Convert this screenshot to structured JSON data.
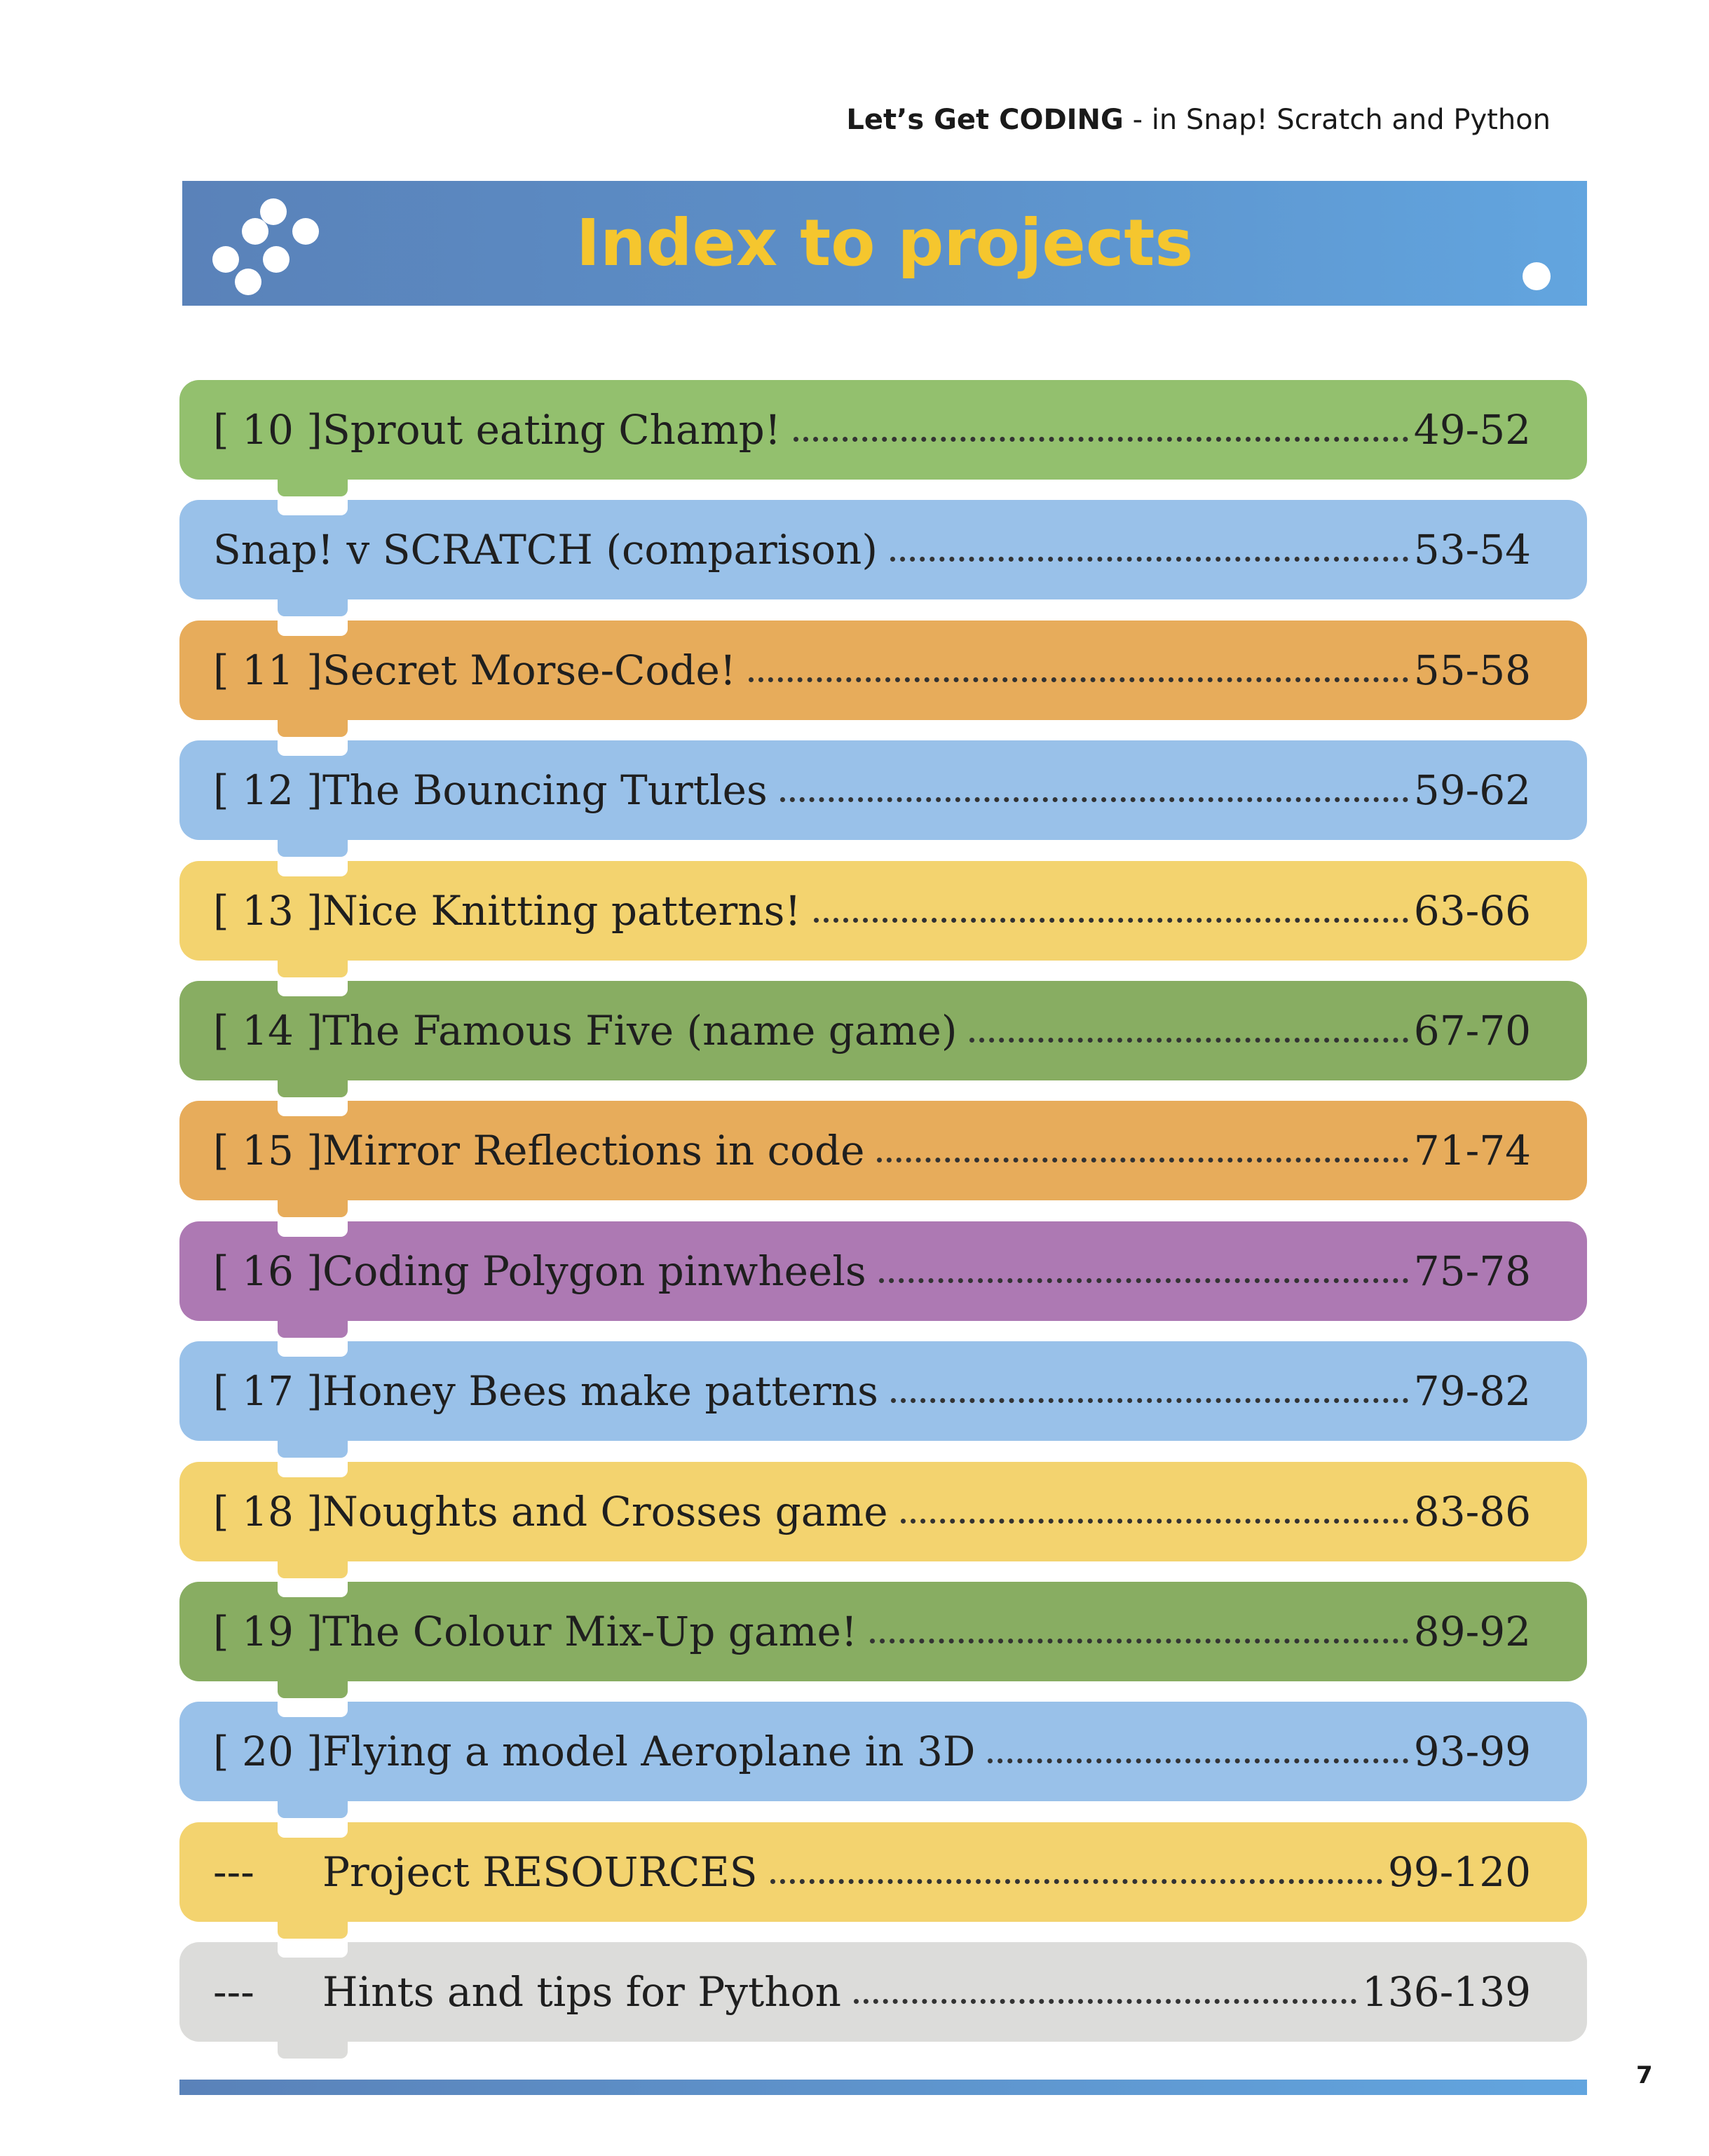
{
  "header": {
    "running_head_bold": "Let’s Get CODING",
    "running_head_rest": " - in Snap! Scratch and Python"
  },
  "banner": {
    "title": "Index to projects",
    "background_color": "#5c8fc8",
    "title_color": "#f5c62e"
  },
  "toc": [
    {
      "number": "[ 10 ]",
      "title": "Sprout eating Champ!",
      "pages": "49-52",
      "color": "#93c06e"
    },
    {
      "number": "",
      "title": "Snap! v SCRATCH (comparison)",
      "pages": "53-54",
      "color": "#99c1e9"
    },
    {
      "number": "[ 11 ]",
      "title": "Secret Morse-Code!",
      "pages": "55-58",
      "color": "#e7ac5b"
    },
    {
      "number": "[ 12 ]",
      "title": "The Bouncing Turtles",
      "pages": "59-62",
      "color": "#99c1e9"
    },
    {
      "number": "[ 13 ]",
      "title": "Nice Knitting patterns!",
      "pages": "63-66",
      "color": "#f3d36f"
    },
    {
      "number": "[ 14 ]",
      "title": "The Famous Five (name game)",
      "pages": "67-70",
      "color": "#88ad62"
    },
    {
      "number": "[ 15 ]",
      "title": "Mirror Reflections in code",
      "pages": "71-74",
      "color": "#e7ac5b"
    },
    {
      "number": "[ 16 ]",
      "title": "Coding Polygon pinwheels",
      "pages": "75-78",
      "color": "#ad79b3"
    },
    {
      "number": "[ 17 ]",
      "title": "Honey Bees make patterns",
      "pages": "79-82",
      "color": "#99c1e9"
    },
    {
      "number": "[ 18 ]",
      "title": "Noughts and Crosses game",
      "pages": "83-86",
      "color": "#f3d36f"
    },
    {
      "number": "[ 19 ]",
      "title": "The Colour Mix-Up game!",
      "pages": "89-92",
      "color": "#88ad62"
    },
    {
      "number": "[ 20 ]",
      "title": "Flying a model Aeroplane in 3D",
      "pages": "93-99",
      "color": "#99c1e9"
    },
    {
      "number": "---",
      "title": "Project RESOURCES",
      "pages": "99-120",
      "color": "#f3d36f"
    },
    {
      "number": "---",
      "title": "Hints and tips for Python",
      "pages": "136-139",
      "color": "#dcdcda"
    }
  ],
  "footer": {
    "page_number": "7",
    "bar_color": "#5a82b9"
  }
}
